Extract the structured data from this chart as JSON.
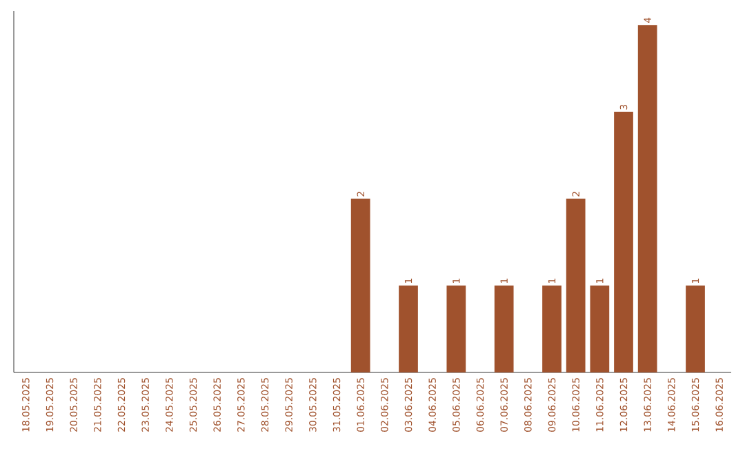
{
  "chart_data": {
    "type": "bar",
    "categories": [
      "18.05.2025",
      "19.05.2025",
      "20.05.2025",
      "21.05.2025",
      "22.05.2025",
      "23.05.2025",
      "24.05.2025",
      "25.05.2025",
      "26.05.2025",
      "27.05.2025",
      "28.05.2025",
      "29.05.2025",
      "30.05.2025",
      "31.05.2025",
      "01.06.2025",
      "02.06.2025",
      "03.06.2025",
      "04.06.2025",
      "05.06.2025",
      "06.06.2025",
      "07.06.2025",
      "08.06.2025",
      "09.06.2025",
      "10.06.2025",
      "11.06.2025",
      "12.06.2025",
      "13.06.2025",
      "14.06.2025",
      "15.06.2025",
      "16.06.2025"
    ],
    "values": [
      null,
      null,
      null,
      null,
      null,
      null,
      null,
      null,
      null,
      null,
      null,
      null,
      null,
      null,
      2,
      null,
      1,
      null,
      1,
      null,
      1,
      null,
      1,
      2,
      1,
      3,
      4,
      null,
      1,
      null
    ],
    "data_labels": true,
    "color": "#a0522d",
    "tick_labels": "x"
  }
}
